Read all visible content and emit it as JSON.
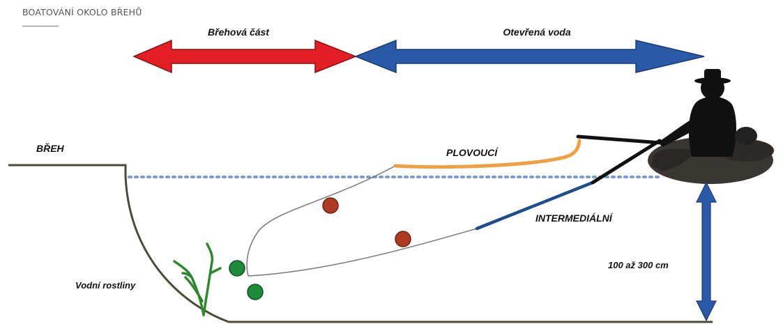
{
  "header": {
    "title": "BOATOVÁNÍ OKOLO BŘEHŮ"
  },
  "zones": {
    "shore_zone": "Břehová část",
    "open_water": "Otevřená voda"
  },
  "labels": {
    "shore": "BŘEH",
    "floating_line": "PLOVOUCÍ",
    "intermediate_line": "INTERMEDIÁLNÍ",
    "depth": "100 až 300 cm",
    "aquatic_plants": "Vodní rostliny"
  },
  "colors": {
    "shore_zone_arrow": "#e31e24",
    "open_water_arrow": "#2b5ba8",
    "floating_line": "#f0a040",
    "intermediate_line": "#1f4c8c",
    "bottom": "#4a4a36",
    "water_surface": "#7a9cd0",
    "bead": "#b03a20",
    "weight": "#1e8a3c",
    "plants": "#2c8a2c",
    "depth_arrow": "#2b5ba8"
  }
}
